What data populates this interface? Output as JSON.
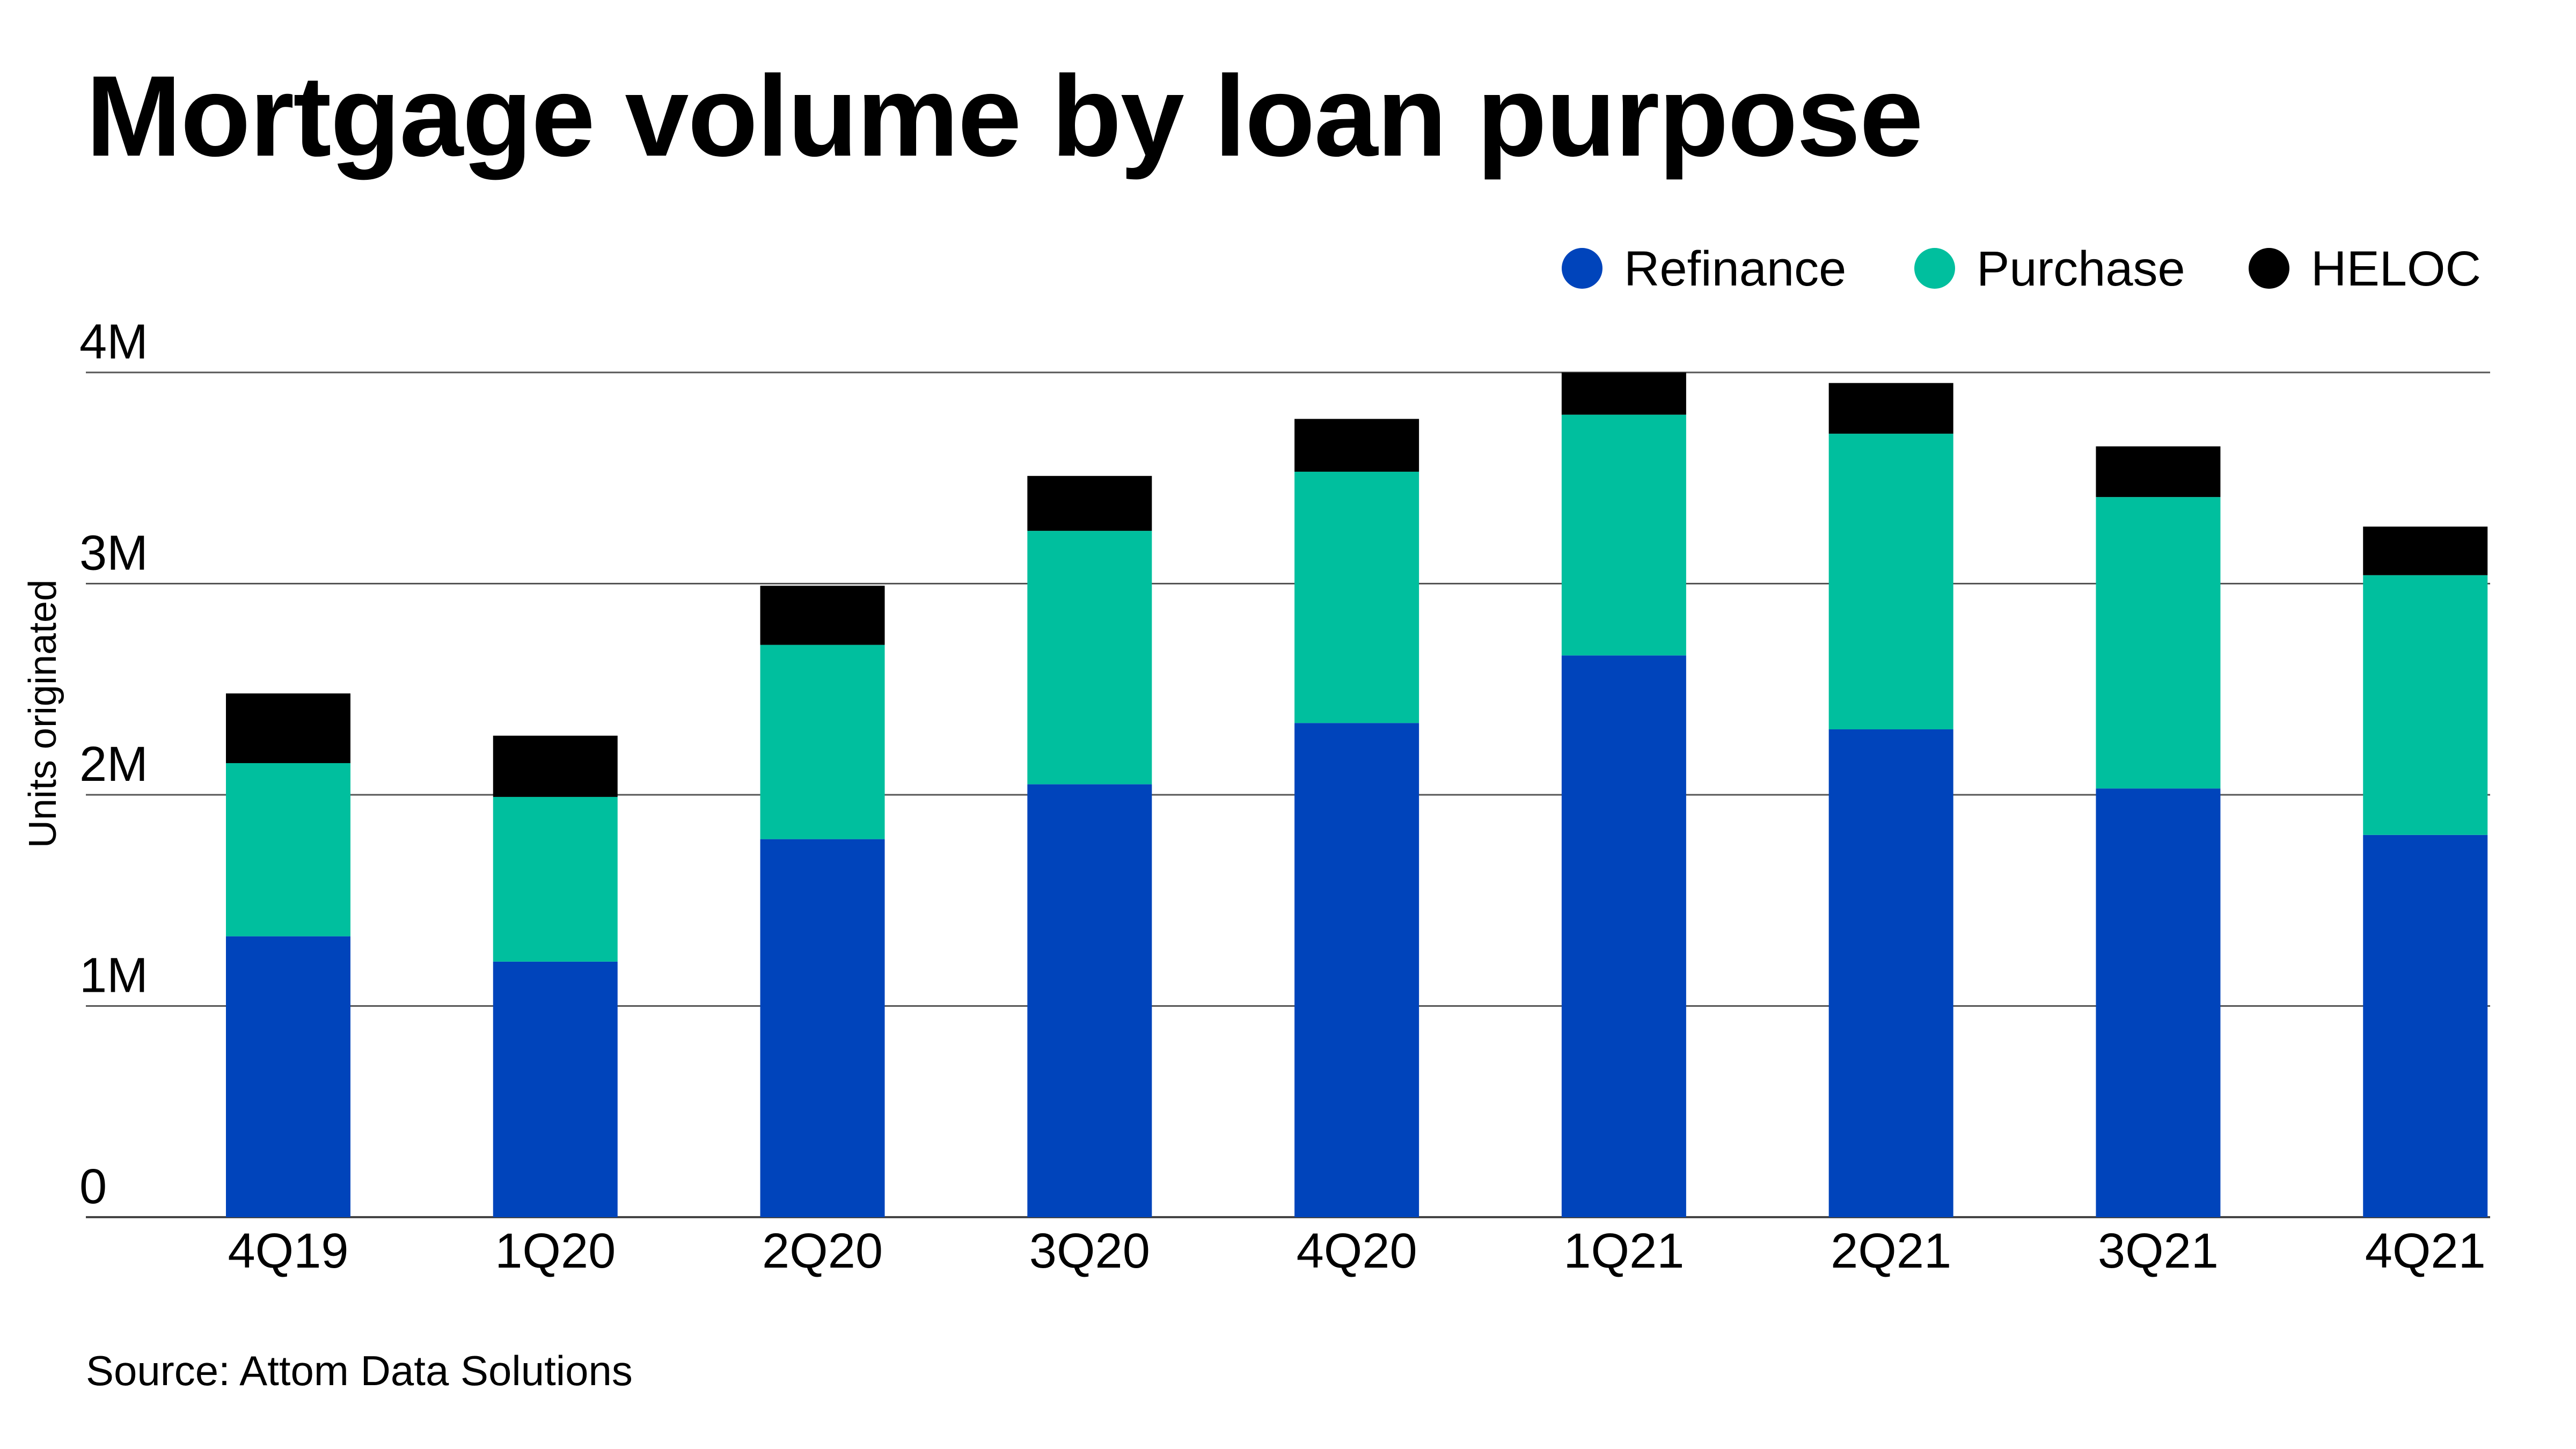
{
  "chart_data": {
    "type": "bar",
    "stacked": true,
    "title": "Mortgage volume by loan purpose",
    "xlabel": "",
    "ylabel": "Units originated",
    "ylim": [
      0,
      4000000
    ],
    "yticks": [
      0,
      1000000,
      2000000,
      3000000,
      4000000
    ],
    "ytick_labels": [
      "0",
      "1M",
      "2M",
      "3M",
      "4M"
    ],
    "grid": true,
    "legend_position": "top-right",
    "categories": [
      "4Q19",
      "1Q20",
      "2Q20",
      "3Q20",
      "4Q20",
      "1Q21",
      "2Q21",
      "3Q21",
      "4Q21"
    ],
    "series": [
      {
        "name": "Refinance",
        "color": "#0044bb",
        "values": [
          1330000,
          1210000,
          1790000,
          2050000,
          2340000,
          2660000,
          2310000,
          2030000,
          1810000
        ]
      },
      {
        "name": "Purchase",
        "color": "#00bf9e",
        "values": [
          820000,
          780000,
          920000,
          1200000,
          1190000,
          1140000,
          1400000,
          1380000,
          1230000
        ]
      },
      {
        "name": "HELOC",
        "color": "#000000",
        "values": [
          330000,
          290000,
          280000,
          260000,
          250000,
          200000,
          240000,
          240000,
          230000
        ]
      }
    ],
    "source": "Source: Attom Data Solutions"
  }
}
